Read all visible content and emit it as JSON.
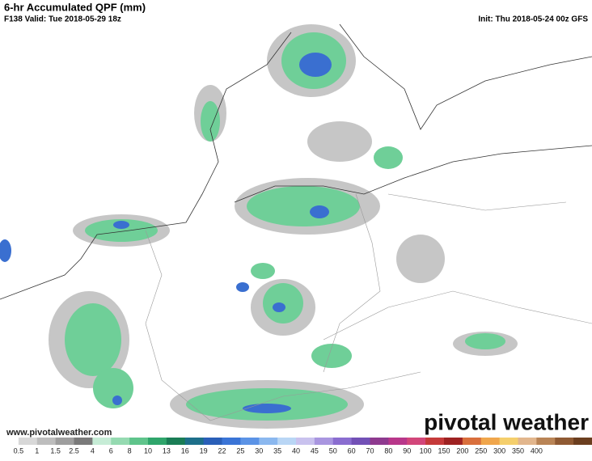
{
  "header": {
    "title": "6-hr Accumulated QPF (mm)",
    "valid": "F138 Valid: Tue 2018-05-29 18z",
    "init": "Init: Thu 2018-05-24 00z GFS"
  },
  "map": {
    "website": "www.pivotalweather.com",
    "brand": "pivotal weather"
  },
  "legend": {
    "ticks": [
      0.5,
      1,
      1.5,
      2.5,
      4,
      6,
      8,
      10,
      13,
      16,
      19,
      22,
      25,
      30,
      35,
      40,
      45,
      50,
      60,
      70,
      80,
      90,
      100,
      150,
      200,
      250,
      300,
      350,
      400
    ],
    "colors": [
      "#ffffff",
      "#d8d8d8",
      "#bdbdbd",
      "#9e9e9e",
      "#7a7a7a",
      "#c6ecd6",
      "#95dab1",
      "#5fc48b",
      "#2fa56b",
      "#1a7d55",
      "#1d6f8a",
      "#2a5fb8",
      "#3a74d6",
      "#5b93e6",
      "#8bb8ef",
      "#b9d6f5",
      "#c9c2ee",
      "#a996e0",
      "#8a6dd0",
      "#7250b6",
      "#8e3a8f",
      "#b8378a",
      "#d2467a",
      "#c53a3a",
      "#9e2222",
      "#d96f3c",
      "#f0a64c",
      "#f5cf6c",
      "#e2b68d",
      "#b98456",
      "#8f5a33",
      "#6b3e1f"
    ]
  }
}
